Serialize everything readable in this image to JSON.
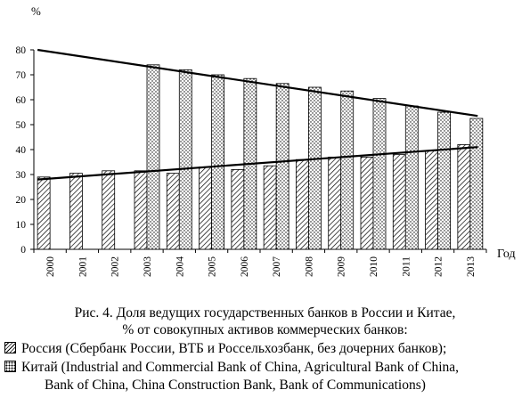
{
  "chart_data": {
    "type": "bar",
    "unit_label": "%",
    "xlabel": "Год",
    "categories": [
      "2000",
      "2001",
      "2002",
      "2003",
      "2004",
      "2005",
      "2006",
      "2007",
      "2008",
      "2009",
      "2010",
      "2011",
      "2012",
      "2013"
    ],
    "ylim": [
      0,
      80
    ],
    "yticks": [
      0,
      10,
      20,
      30,
      40,
      50,
      60,
      70,
      80
    ],
    "series": [
      {
        "name": "Россия (Сбербанк России, ВТБ и Россельхозбанк, без дочерних банков);",
        "values": [
          29,
          30.5,
          31.5,
          31.5,
          30.5,
          33,
          32,
          33.5,
          36,
          37,
          37,
          38,
          39.5,
          42
        ]
      },
      {
        "name": "Китай (Industrial and Commercial Bank of China, Agricultural Bank of China, Bank of China, China Construction Bank, Bank of Communications)",
        "values": [
          null,
          null,
          null,
          74,
          72,
          70,
          68.5,
          66.5,
          65,
          63.5,
          60.5,
          57.5,
          55,
          52.5
        ]
      }
    ],
    "trend_lines": [
      {
        "series": "China",
        "from": [
          "2000",
          80
        ],
        "to": [
          "2013",
          53.5
        ]
      },
      {
        "series": "Russia",
        "from": [
          "2000",
          28
        ],
        "to": [
          "2013",
          41
        ]
      }
    ],
    "grid": false,
    "legend_position": "bottom"
  },
  "caption": {
    "line1": "Рис. 4. Доля ведущих государственных банков в России и Китае,",
    "line2": "% от совокупных активов коммерческих банков:",
    "legend_russia": "Россия (Сбербанк России, ВТБ и Россельхозбанк, без дочерних банков);",
    "legend_china_line1": "Китай (Industrial and Commercial Bank of China, Agricultural Bank of China,",
    "legend_china_line2": "Bank of China, China Construction Bank, Bank of Communications)"
  }
}
